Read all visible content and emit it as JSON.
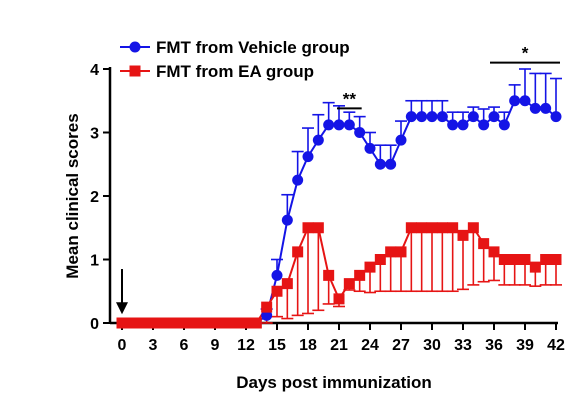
{
  "chart_data": {
    "type": "line",
    "xlabel": "Days post immunization",
    "ylabel": "Mean clinical scores",
    "xlim": [
      0,
      42
    ],
    "ylim": [
      0,
      4
    ],
    "xticks": [
      0,
      3,
      6,
      9,
      12,
      15,
      18,
      21,
      24,
      27,
      30,
      33,
      36,
      39,
      42
    ],
    "yticks": [
      0,
      1,
      2,
      3,
      4
    ],
    "x": [
      0,
      1,
      2,
      3,
      4,
      5,
      6,
      7,
      8,
      9,
      10,
      11,
      12,
      13,
      14,
      15,
      16,
      17,
      18,
      19,
      20,
      21,
      22,
      23,
      24,
      25,
      26,
      27,
      28,
      29,
      30,
      31,
      32,
      33,
      34,
      35,
      36,
      37,
      38,
      39,
      40,
      41,
      42
    ],
    "legend_position": "top-left",
    "series": [
      {
        "name": "FMT from Vehicle group",
        "color": "#1414e6",
        "marker": "circle",
        "error_direction": "up",
        "values": [
          0,
          0,
          0,
          0,
          0,
          0,
          0,
          0,
          0,
          0,
          0,
          0,
          0,
          0,
          0.12,
          0.75,
          1.62,
          2.25,
          2.62,
          2.88,
          3.12,
          3.12,
          3.12,
          3.0,
          2.75,
          2.5,
          2.5,
          2.88,
          3.25,
          3.25,
          3.25,
          3.25,
          3.12,
          3.12,
          3.25,
          3.12,
          3.25,
          3.12,
          3.5,
          3.5,
          3.38,
          3.38,
          3.25
        ],
        "errors": [
          0,
          0,
          0,
          0,
          0,
          0,
          0,
          0,
          0,
          0,
          0,
          0,
          0,
          0,
          0.1,
          0.25,
          0.4,
          0.45,
          0.45,
          0.4,
          0.35,
          0.3,
          0.2,
          0.25,
          0.25,
          0.3,
          0.3,
          0.3,
          0.25,
          0.25,
          0.25,
          0.25,
          0.2,
          0.2,
          0.15,
          0.25,
          0.15,
          0.2,
          0.25,
          0.5,
          0.55,
          0.55,
          0.6
        ]
      },
      {
        "name": "FMT from EA group",
        "color": "#e61414",
        "marker": "square",
        "error_direction": "down",
        "values": [
          0,
          0,
          0,
          0,
          0,
          0,
          0,
          0,
          0,
          0,
          0,
          0,
          0,
          0,
          0.25,
          0.5,
          0.62,
          1.12,
          1.5,
          1.5,
          0.75,
          0.38,
          0.62,
          0.75,
          0.88,
          1.0,
          1.12,
          1.12,
          1.5,
          1.5,
          1.5,
          1.5,
          1.5,
          1.38,
          1.5,
          1.25,
          1.12,
          1.0,
          1.0,
          1.0,
          0.88,
          1.0,
          1.0
        ],
        "errors": [
          0,
          0,
          0,
          0,
          0,
          0,
          0,
          0,
          0,
          0,
          0,
          0,
          0,
          0,
          0.25,
          0.4,
          0.55,
          1.0,
          1.35,
          1.3,
          0.45,
          0.12,
          0.1,
          0.25,
          0.4,
          0.5,
          0.62,
          0.62,
          1.0,
          1.0,
          1.0,
          1.0,
          1.0,
          0.85,
          0.9,
          0.6,
          0.45,
          0.4,
          0.4,
          0.4,
          0.3,
          0.4,
          0.4
        ]
      }
    ],
    "annotations": [
      {
        "type": "significance",
        "text": "**",
        "x_from": 21,
        "x_to": 23,
        "y": 3.38
      },
      {
        "type": "significance",
        "text": "*",
        "x_from": 36,
        "x_to": 42,
        "y": 4.1
      },
      {
        "type": "arrow",
        "x": 0,
        "y_from": 0.85,
        "y_to": 0.2
      }
    ]
  }
}
